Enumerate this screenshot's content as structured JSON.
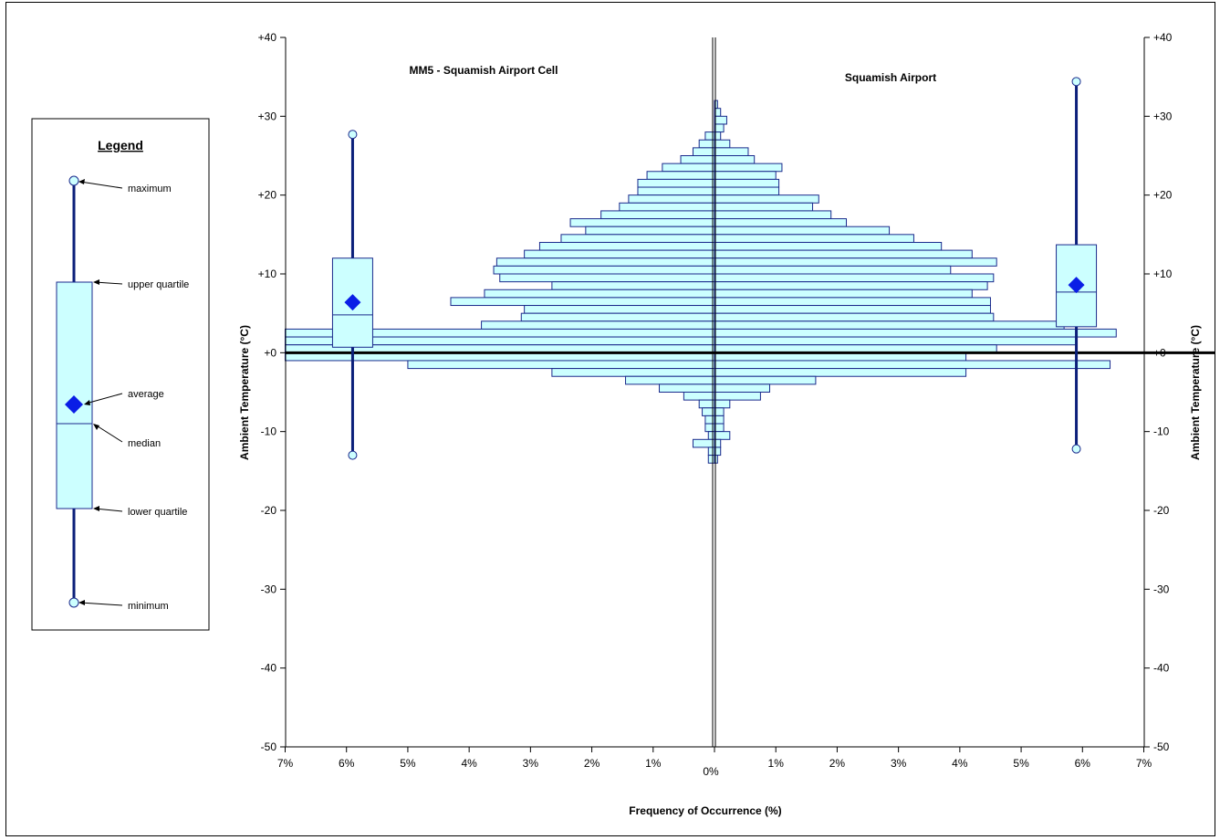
{
  "colors": {
    "bar_fill": "#ccffff",
    "bar_stroke": "#1b2a8c",
    "whisker": "#0b1f7a",
    "marker": "#0a1ee6",
    "axis": "#000000"
  },
  "legend": {
    "title": "Legend",
    "labels": {
      "maximum": "maximum",
      "upper_quartile": "upper quartile",
      "average": "average",
      "median": "median",
      "lower_quartile": "lower quartile",
      "minimum": "minimum"
    }
  },
  "chart_data": {
    "type": "bar",
    "orientation": "horizontal",
    "xlabel": "Frequency of Occurrence (%)",
    "ylabel_left": "Ambient Temperature (°C)",
    "ylabel_right": "Ambient Temperature (°C)",
    "ylim": [
      -50,
      40
    ],
    "y_ticks": [
      {
        "value": 40,
        "label": "+40"
      },
      {
        "value": 30,
        "label": "+30"
      },
      {
        "value": 20,
        "label": "+20"
      },
      {
        "value": 10,
        "label": "+10"
      },
      {
        "value": 0,
        "label": "+0"
      },
      {
        "value": -10,
        "label": "-10"
      },
      {
        "value": -20,
        "label": "-20"
      },
      {
        "value": -30,
        "label": "-30"
      },
      {
        "value": -40,
        "label": "-40"
      },
      {
        "value": -50,
        "label": "-50"
      }
    ],
    "x_ticks": [
      {
        "value": -7,
        "label": "7%"
      },
      {
        "value": -6,
        "label": "6%"
      },
      {
        "value": -5,
        "label": "5%"
      },
      {
        "value": -4,
        "label": "4%"
      },
      {
        "value": -3,
        "label": "3%"
      },
      {
        "value": -2,
        "label": "2%"
      },
      {
        "value": -1,
        "label": "1%"
      },
      {
        "value": 0,
        "label": "0%"
      },
      {
        "value": 1,
        "label": "1%"
      },
      {
        "value": 2,
        "label": "2%"
      },
      {
        "value": 3,
        "label": "3%"
      },
      {
        "value": 4,
        "label": "4%"
      },
      {
        "value": 5,
        "label": "5%"
      },
      {
        "value": 6,
        "label": "6%"
      },
      {
        "value": 7,
        "label": "7%"
      }
    ],
    "xlim": [
      -7,
      7
    ],
    "bin_width_c": 1,
    "series": [
      {
        "name": "MM5 - Squamish Airport Cell",
        "side": "left",
        "bins": [
          {
            "t": 31,
            "pct": 0.0
          },
          {
            "t": 30,
            "pct": 0.0
          },
          {
            "t": 29,
            "pct": 0.0
          },
          {
            "t": 28,
            "pct": 0.0
          },
          {
            "t": 27,
            "pct": 0.15
          },
          {
            "t": 26,
            "pct": 0.25
          },
          {
            "t": 25,
            "pct": 0.35
          },
          {
            "t": 24,
            "pct": 0.55
          },
          {
            "t": 23,
            "pct": 0.85
          },
          {
            "t": 22,
            "pct": 1.1
          },
          {
            "t": 21,
            "pct": 1.25
          },
          {
            "t": 20,
            "pct": 1.25
          },
          {
            "t": 19,
            "pct": 1.4
          },
          {
            "t": 18,
            "pct": 1.55
          },
          {
            "t": 17,
            "pct": 1.85
          },
          {
            "t": 16,
            "pct": 2.35
          },
          {
            "t": 15,
            "pct": 2.1
          },
          {
            "t": 14,
            "pct": 2.5
          },
          {
            "t": 13,
            "pct": 2.85
          },
          {
            "t": 12,
            "pct": 3.1
          },
          {
            "t": 11,
            "pct": 3.55
          },
          {
            "t": 10,
            "pct": 3.6
          },
          {
            "t": 9,
            "pct": 3.5
          },
          {
            "t": 8,
            "pct": 2.65
          },
          {
            "t": 7,
            "pct": 3.75
          },
          {
            "t": 6,
            "pct": 4.3
          },
          {
            "t": 5,
            "pct": 3.1
          },
          {
            "t": 4,
            "pct": 3.15
          },
          {
            "t": 3,
            "pct": 3.8
          },
          {
            "t": 2,
            "pct": 7.0
          },
          {
            "t": 1,
            "pct": 7.0
          },
          {
            "t": 0,
            "pct": 7.0
          },
          {
            "t": -1,
            "pct": 7.0
          },
          {
            "t": -2,
            "pct": 5.0
          },
          {
            "t": -3,
            "pct": 2.65
          },
          {
            "t": -4,
            "pct": 1.45
          },
          {
            "t": -5,
            "pct": 0.9
          },
          {
            "t": -6,
            "pct": 0.5
          },
          {
            "t": -7,
            "pct": 0.25
          },
          {
            "t": -8,
            "pct": 0.2
          },
          {
            "t": -9,
            "pct": 0.15
          },
          {
            "t": -10,
            "pct": 0.15
          },
          {
            "t": -11,
            "pct": 0.1
          },
          {
            "t": -12,
            "pct": 0.35
          },
          {
            "t": -13,
            "pct": 0.1
          },
          {
            "t": -14,
            "pct": 0.1
          }
        ],
        "box": {
          "max": 27.7,
          "upper_quartile": 12.0,
          "average": 6.4,
          "median": 4.8,
          "lower_quartile": 0.7,
          "minimum": -13.0,
          "x_pct": -5.9
        }
      },
      {
        "name": "Squamish Airport",
        "side": "right",
        "bins": [
          {
            "t": 31,
            "pct": 0.05
          },
          {
            "t": 30,
            "pct": 0.1
          },
          {
            "t": 29,
            "pct": 0.2
          },
          {
            "t": 28,
            "pct": 0.15
          },
          {
            "t": 27,
            "pct": 0.1
          },
          {
            "t": 26,
            "pct": 0.25
          },
          {
            "t": 25,
            "pct": 0.55
          },
          {
            "t": 24,
            "pct": 0.65
          },
          {
            "t": 23,
            "pct": 1.1
          },
          {
            "t": 22,
            "pct": 1.0
          },
          {
            "t": 21,
            "pct": 1.05
          },
          {
            "t": 20,
            "pct": 1.05
          },
          {
            "t": 19,
            "pct": 1.7
          },
          {
            "t": 18,
            "pct": 1.6
          },
          {
            "t": 17,
            "pct": 1.9
          },
          {
            "t": 16,
            "pct": 2.15
          },
          {
            "t": 15,
            "pct": 2.85
          },
          {
            "t": 14,
            "pct": 3.25
          },
          {
            "t": 13,
            "pct": 3.7
          },
          {
            "t": 12,
            "pct": 4.2
          },
          {
            "t": 11,
            "pct": 4.6
          },
          {
            "t": 10,
            "pct": 3.85
          },
          {
            "t": 9,
            "pct": 4.55
          },
          {
            "t": 8,
            "pct": 4.45
          },
          {
            "t": 7,
            "pct": 4.2
          },
          {
            "t": 6,
            "pct": 4.5
          },
          {
            "t": 5,
            "pct": 4.5
          },
          {
            "t": 4,
            "pct": 4.55
          },
          {
            "t": 3,
            "pct": 5.7
          },
          {
            "t": 2,
            "pct": 6.55
          },
          {
            "t": 1,
            "pct": 5.9
          },
          {
            "t": 0,
            "pct": 4.6
          },
          {
            "t": -1,
            "pct": 4.1
          },
          {
            "t": -2,
            "pct": 6.45
          },
          {
            "t": -3,
            "pct": 4.1
          },
          {
            "t": -4,
            "pct": 1.65
          },
          {
            "t": -5,
            "pct": 0.9
          },
          {
            "t": -6,
            "pct": 0.75
          },
          {
            "t": -7,
            "pct": 0.25
          },
          {
            "t": -8,
            "pct": 0.15
          },
          {
            "t": -9,
            "pct": 0.15
          },
          {
            "t": -10,
            "pct": 0.15
          },
          {
            "t": -11,
            "pct": 0.25
          },
          {
            "t": -12,
            "pct": 0.1
          },
          {
            "t": -13,
            "pct": 0.1
          },
          {
            "t": -14,
            "pct": 0.05
          }
        ],
        "box": {
          "max": 34.4,
          "upper_quartile": 13.7,
          "average": 8.6,
          "median": 7.7,
          "lower_quartile": 3.3,
          "minimum": -12.2,
          "x_pct": 5.9
        }
      }
    ]
  }
}
